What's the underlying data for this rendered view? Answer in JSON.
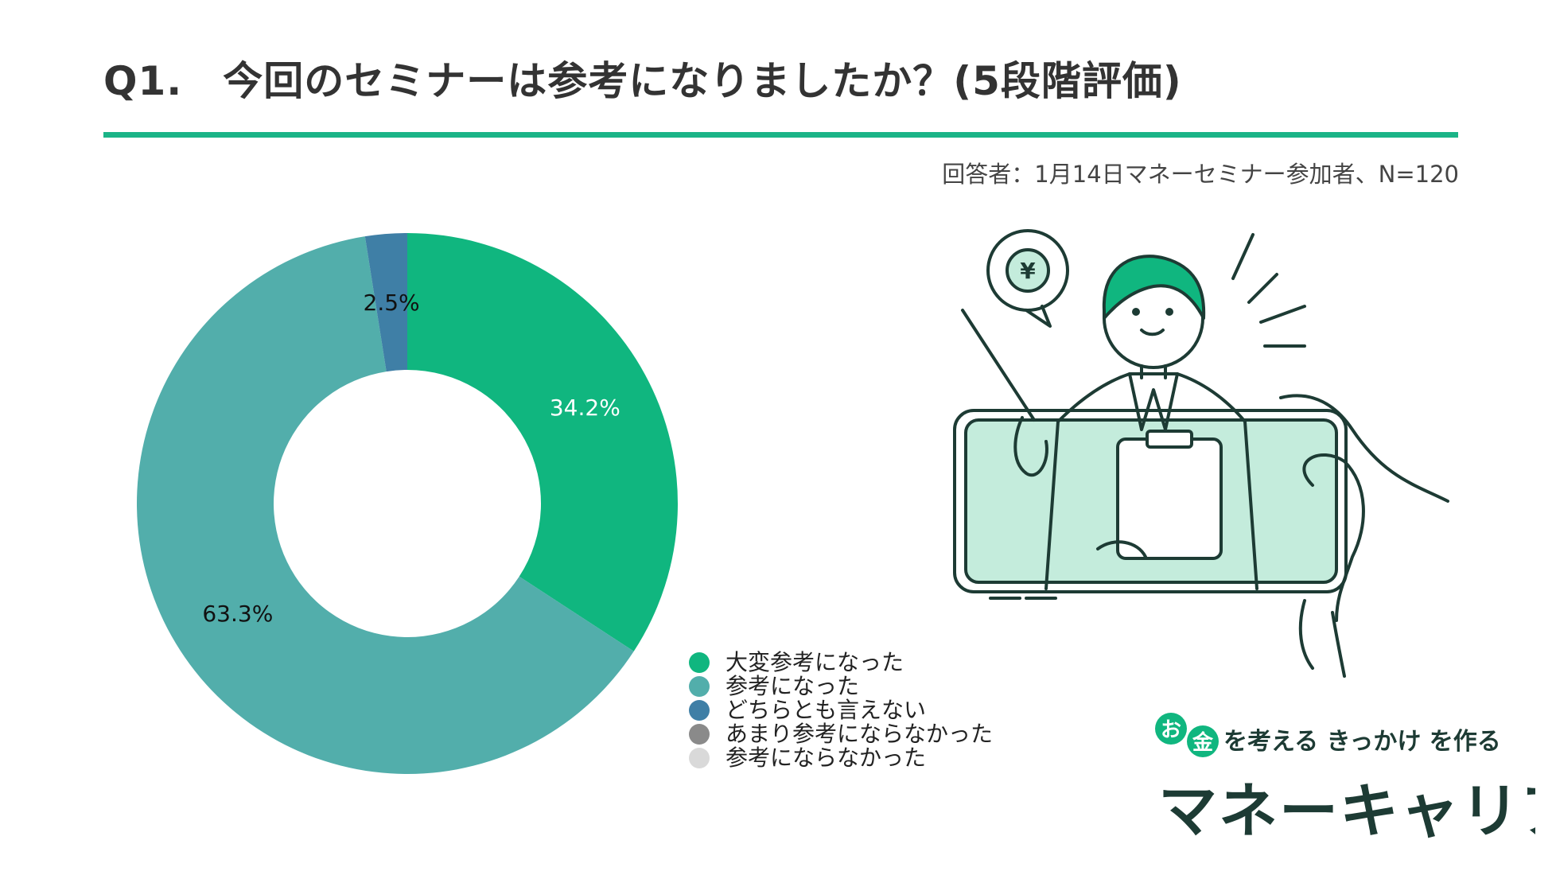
{
  "title": "Q1.　今回のセミナーは参考になりましたか？(5段階評価)",
  "respondent": "回答者：1月14日マネーセミナー参加者、N=120",
  "colors": {
    "accent": "#1bb487",
    "series": [
      "#10b67f",
      "#52aeab",
      "#3f7fa6",
      "#8a8a8a",
      "#d9d9d9"
    ]
  },
  "chart_data": {
    "type": "pie",
    "donut": true,
    "legend_position": "bottom-right",
    "categories": [
      "大変参考になった",
      "参考になった",
      "どちらとも言えない",
      "あまり参考にならなかった",
      "参考にならなかった"
    ],
    "values": [
      34.2,
      63.3,
      2.5,
      0,
      0
    ],
    "data_labels": [
      "34.2%",
      "63.3%",
      "2.5%",
      "",
      ""
    ]
  },
  "illustration": {
    "speech_bubble_icon": "yen-icon",
    "yen_symbol": "¥"
  },
  "logo": {
    "tagline_prefix_1": "お",
    "tagline_prefix_2": "金",
    "tagline_rest": "を考える きっかけ を作る",
    "brand": "マネーキャリア"
  }
}
